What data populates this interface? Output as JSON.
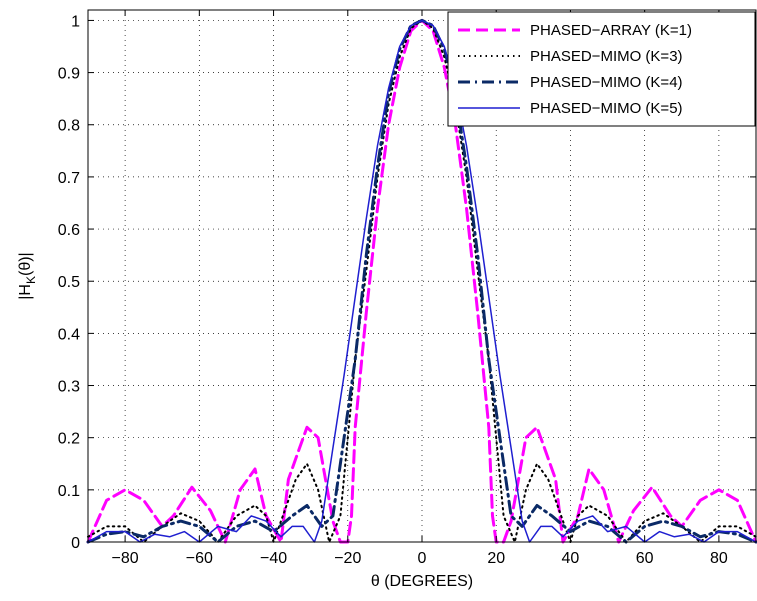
{
  "chart_data": {
    "type": "line",
    "title": "",
    "xlabel": "θ (DEGREES)",
    "ylabel_main": "|H",
    "ylabel_sub": "K",
    "ylabel_tail": "(θ)|",
    "xlim": [
      -90,
      90
    ],
    "ylim": [
      0,
      1.02
    ],
    "grid": true,
    "legend_placement": "top-right",
    "xticks": [
      -80,
      -60,
      -40,
      -20,
      0,
      20,
      40,
      60,
      80
    ],
    "xtick_labels": [
      "−80",
      "−60",
      "−40",
      "−20",
      "0",
      "20",
      "40",
      "60",
      "80"
    ],
    "yticks": [
      0,
      0.1,
      0.2,
      0.3,
      0.4,
      0.5,
      0.6,
      0.7,
      0.8,
      0.9,
      1
    ],
    "ytick_labels": [
      "0",
      "0.1",
      "0.2",
      "0.3",
      "0.4",
      "0.5",
      "0.6",
      "0.7",
      "0.8",
      "0.9",
      "1"
    ],
    "series": [
      {
        "name": "PHASED−ARRAY (K=1)",
        "color": "#ff00ff",
        "dash": "dashed",
        "width": 3,
        "x": [
          -90,
          -85,
          -80,
          -75,
          -70,
          -67,
          -62,
          -57,
          -53,
          -49,
          -45,
          -42,
          -38,
          -36,
          -33,
          -31,
          -28,
          -26,
          -24,
          -22,
          -20,
          -19,
          -18,
          -15,
          -12,
          -9,
          -6,
          -3,
          0,
          3,
          6,
          9,
          12,
          15,
          18,
          19,
          20,
          22,
          24,
          26,
          28,
          31,
          33,
          36,
          38,
          42,
          45,
          49,
          53,
          57,
          62,
          67,
          70,
          75,
          80,
          85,
          90
        ],
        "y": [
          0.0,
          0.08,
          0.1,
          0.08,
          0.03,
          0.05,
          0.105,
          0.06,
          0.0,
          0.1,
          0.14,
          0.05,
          0.0,
          0.12,
          0.18,
          0.22,
          0.2,
          0.12,
          0.04,
          0.0,
          0.0,
          0.05,
          0.22,
          0.44,
          0.64,
          0.8,
          0.91,
          0.98,
          1.0,
          0.98,
          0.91,
          0.8,
          0.64,
          0.44,
          0.22,
          0.05,
          0.0,
          0.0,
          0.04,
          0.12,
          0.2,
          0.22,
          0.18,
          0.12,
          0.0,
          0.05,
          0.14,
          0.1,
          0.0,
          0.06,
          0.105,
          0.05,
          0.03,
          0.08,
          0.1,
          0.08,
          0.0
        ]
      },
      {
        "name": "PHASED−MIMO (K=3)",
        "color": "#000000",
        "dash": "dotted",
        "width": 2,
        "x": [
          -90,
          -85,
          -80,
          -75,
          -70,
          -65,
          -60,
          -55,
          -50,
          -45,
          -42,
          -40,
          -37,
          -34,
          -31,
          -28,
          -25,
          -22,
          -20,
          -18,
          -15,
          -12,
          -9,
          -6,
          -3,
          0,
          3,
          6,
          9,
          12,
          15,
          18,
          20,
          22,
          25,
          28,
          31,
          34,
          37,
          40,
          42,
          45,
          50,
          55,
          60,
          65,
          70,
          75,
          80,
          85,
          90
        ],
        "y": [
          0.01,
          0.03,
          0.03,
          0.0,
          0.03,
          0.055,
          0.04,
          0.0,
          0.05,
          0.07,
          0.05,
          0.0,
          0.06,
          0.12,
          0.15,
          0.1,
          0.0,
          0.05,
          0.2,
          0.35,
          0.52,
          0.7,
          0.84,
          0.93,
          0.985,
          1.0,
          0.985,
          0.93,
          0.84,
          0.7,
          0.52,
          0.35,
          0.2,
          0.05,
          0.0,
          0.1,
          0.15,
          0.12,
          0.06,
          0.0,
          0.05,
          0.07,
          0.05,
          0.0,
          0.04,
          0.055,
          0.03,
          0.0,
          0.03,
          0.03,
          0.01
        ]
      },
      {
        "name": "PHASED−MIMO (K=4)",
        "color": "#0b2a66",
        "dash": "dashdot",
        "width": 3,
        "x": [
          -90,
          -85,
          -80,
          -75,
          -70,
          -65,
          -60,
          -55,
          -50,
          -45,
          -40,
          -35,
          -31,
          -27,
          -24,
          -21,
          -18,
          -15,
          -12,
          -9,
          -6,
          -3,
          0,
          3,
          6,
          9,
          12,
          15,
          18,
          21,
          24,
          27,
          31,
          35,
          40,
          45,
          50,
          55,
          60,
          65,
          70,
          75,
          80,
          85,
          90
        ],
        "y": [
          0.0,
          0.015,
          0.02,
          0.01,
          0.03,
          0.04,
          0.03,
          0.0,
          0.03,
          0.04,
          0.02,
          0.05,
          0.07,
          0.03,
          0.05,
          0.2,
          0.35,
          0.55,
          0.72,
          0.86,
          0.945,
          0.99,
          1.0,
          0.99,
          0.945,
          0.86,
          0.72,
          0.55,
          0.35,
          0.2,
          0.05,
          0.03,
          0.07,
          0.05,
          0.02,
          0.04,
          0.03,
          0.0,
          0.03,
          0.04,
          0.03,
          0.01,
          0.02,
          0.015,
          0.0
        ]
      },
      {
        "name": "PHASED−MIMO (K=5)",
        "color": "#1f1fd0",
        "dash": "solid",
        "width": 1.5,
        "x": [
          -90,
          -85,
          -80,
          -76,
          -72,
          -68,
          -64,
          -60,
          -55,
          -50,
          -46,
          -42,
          -38,
          -35,
          -32,
          -29,
          -27,
          -24,
          -21,
          -18,
          -15,
          -12,
          -9,
          -6,
          -3,
          0,
          3,
          6,
          9,
          12,
          15,
          18,
          21,
          24,
          27,
          29,
          32,
          35,
          38,
          42,
          46,
          50,
          55,
          60,
          64,
          68,
          72,
          76,
          80,
          85,
          90
        ],
        "y": [
          0.0,
          0.02,
          0.02,
          0.0,
          0.015,
          0.01,
          0.02,
          0.0,
          0.03,
          0.02,
          0.05,
          0.04,
          0.01,
          0.03,
          0.03,
          0.0,
          0.04,
          0.18,
          0.32,
          0.47,
          0.62,
          0.76,
          0.87,
          0.95,
          0.99,
          1.0,
          0.99,
          0.95,
          0.87,
          0.76,
          0.62,
          0.47,
          0.32,
          0.18,
          0.04,
          0.0,
          0.03,
          0.03,
          0.01,
          0.04,
          0.05,
          0.02,
          0.03,
          0.0,
          0.02,
          0.01,
          0.015,
          0.0,
          0.02,
          0.02,
          0.0
        ]
      }
    ]
  }
}
